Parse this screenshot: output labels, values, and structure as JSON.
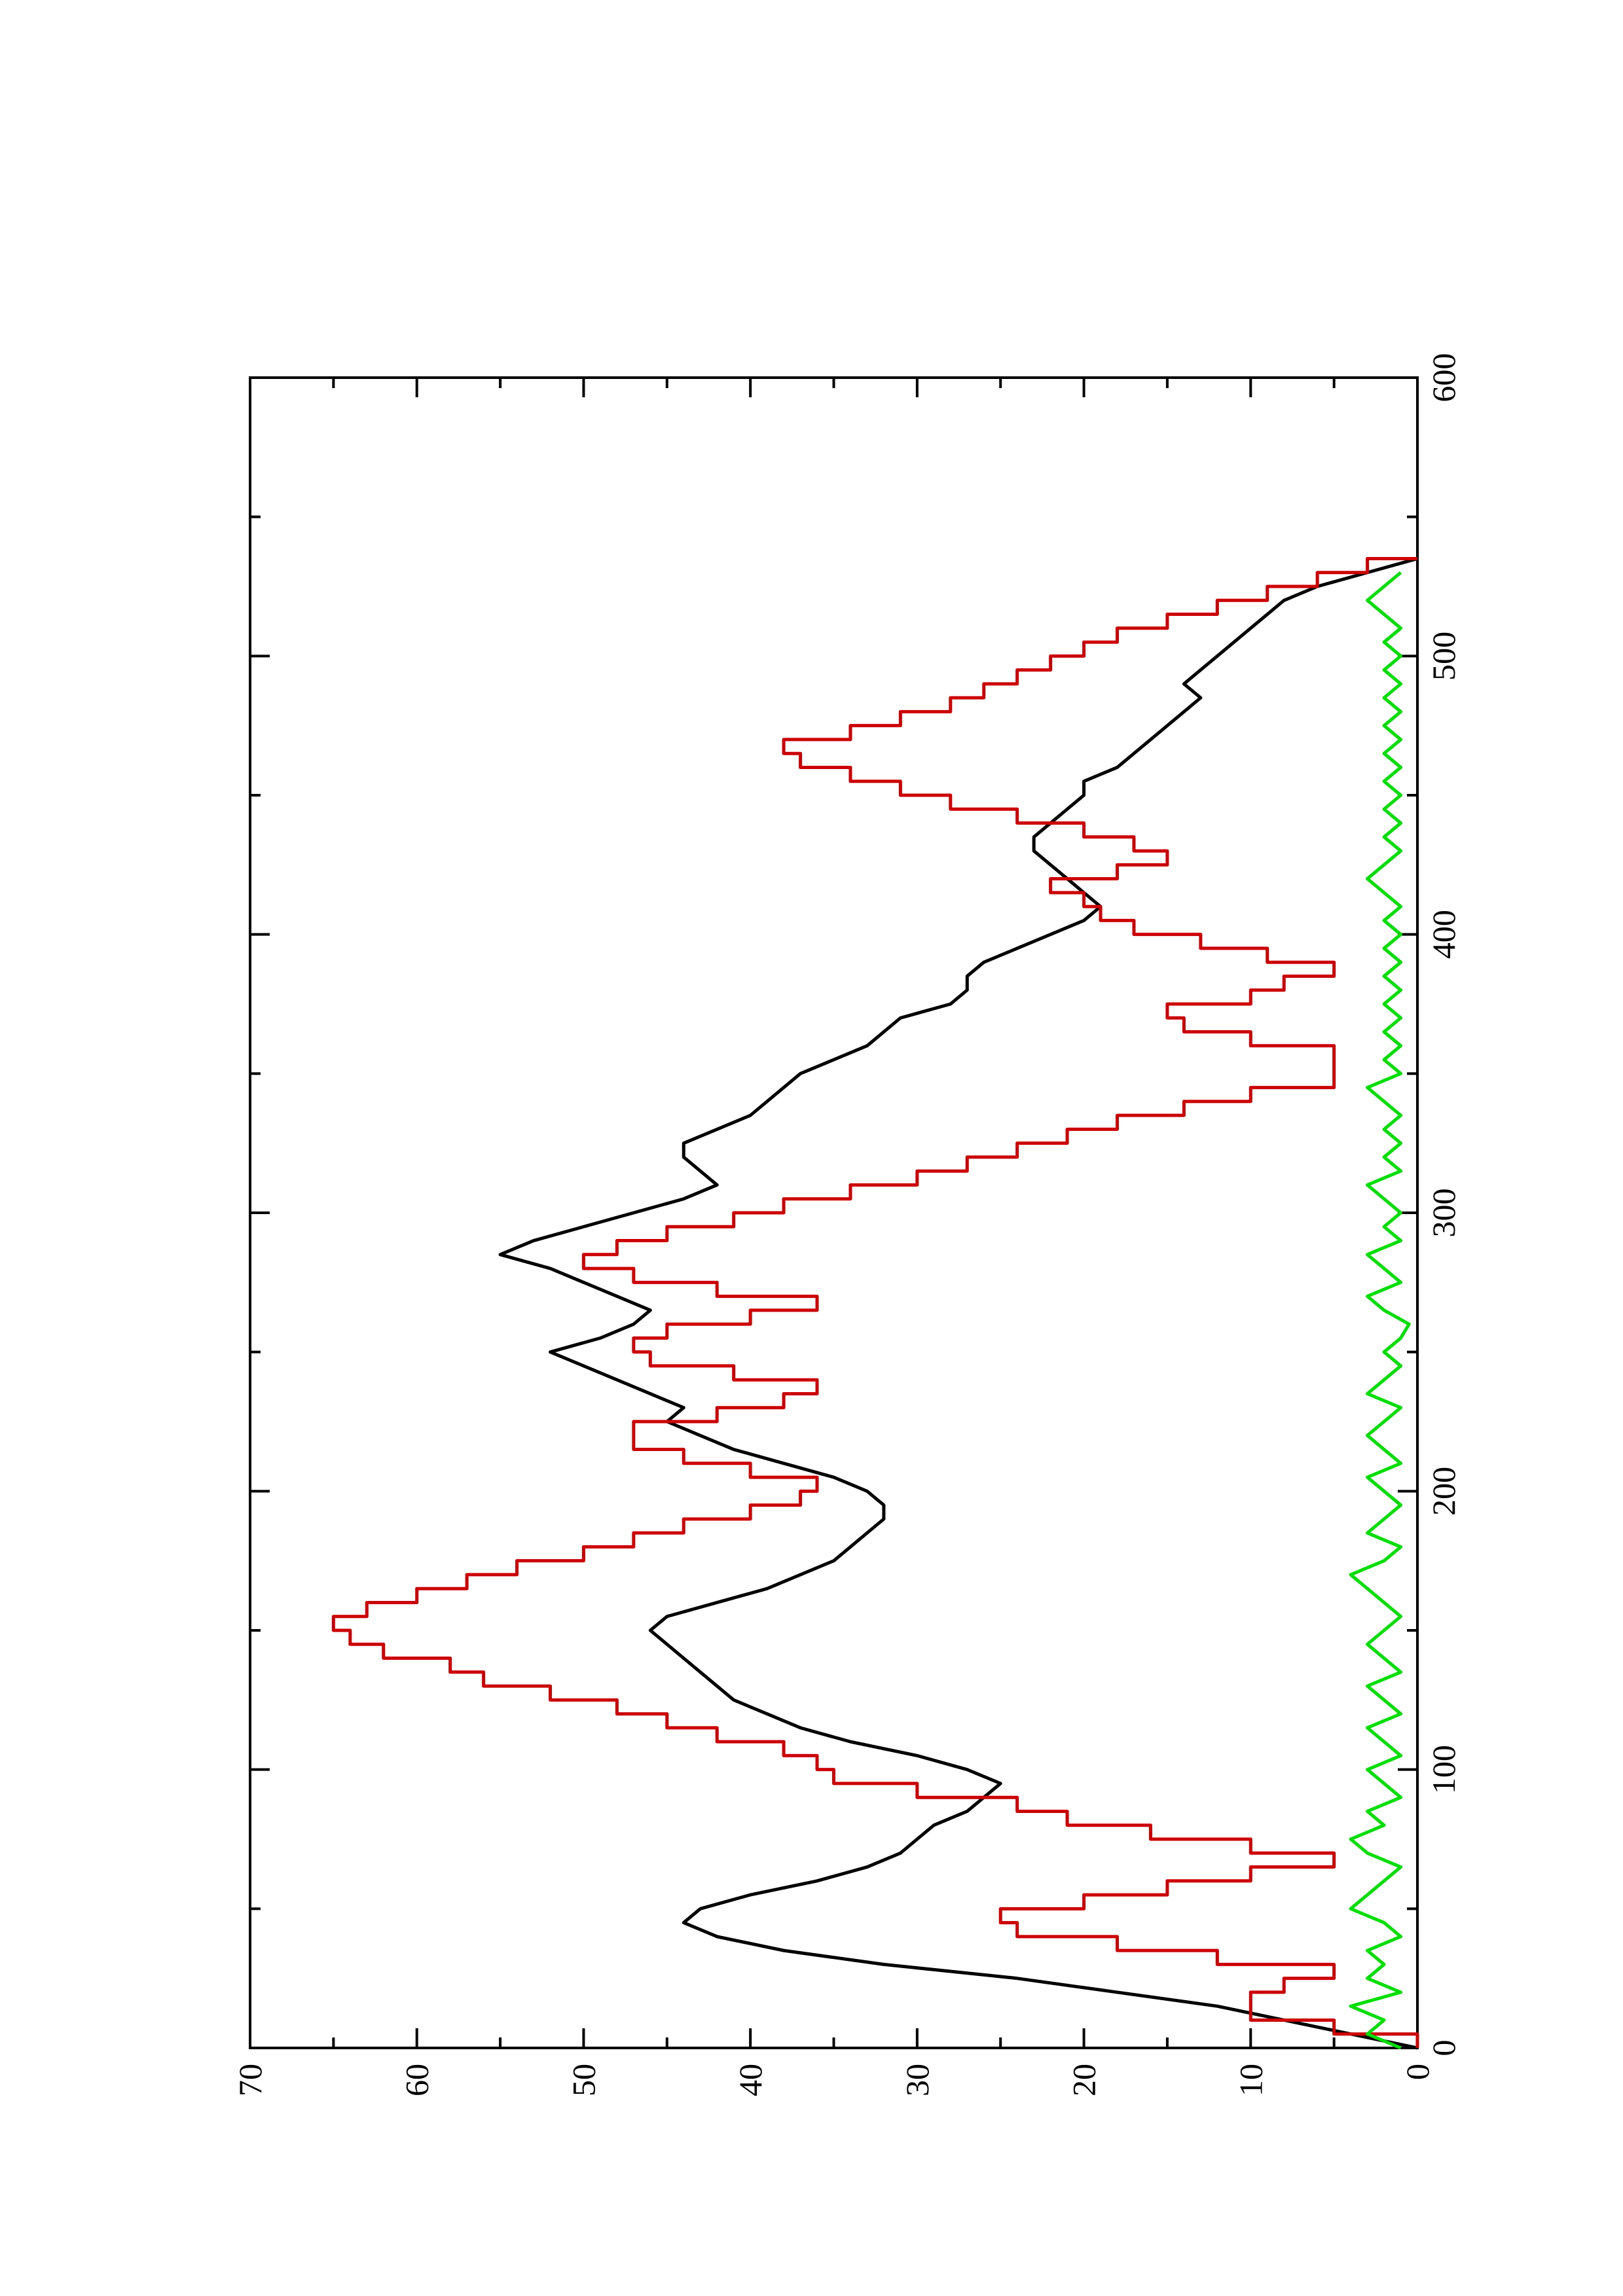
{
  "chart_data": {
    "type": "line",
    "orientation": "rotated-90-counterclockwise",
    "title": "",
    "xlabel": "",
    "ylabel": "",
    "xlim": [
      0,
      600
    ],
    "ylim": [
      0,
      70
    ],
    "x_ticks": [
      0,
      100,
      200,
      300,
      400,
      500,
      600
    ],
    "x_minor_ticks": [
      50,
      150,
      250,
      350,
      450,
      550
    ],
    "y_ticks": [
      0,
      10,
      20,
      30,
      40,
      50,
      60,
      70
    ],
    "y_minor_ticks": [
      5,
      15,
      25,
      35,
      45,
      55,
      65
    ],
    "x_tick_labels": [
      "0",
      "100",
      "200",
      "300",
      "400",
      "500",
      "600"
    ],
    "y_tick_labels": [
      "0",
      "10",
      "20",
      "30",
      "40",
      "50",
      "60",
      "70"
    ],
    "grid": false,
    "legend": "none",
    "series": [
      {
        "color": "#000000",
        "style": "line",
        "x": [
          0,
          5,
          10,
          15,
          20,
          25,
          30,
          35,
          40,
          45,
          50,
          55,
          60,
          65,
          70,
          75,
          80,
          85,
          90,
          95,
          100,
          105,
          110,
          115,
          120,
          125,
          130,
          135,
          140,
          145,
          150,
          155,
          160,
          165,
          170,
          175,
          180,
          185,
          190,
          195,
          200,
          205,
          210,
          215,
          220,
          225,
          230,
          235,
          240,
          245,
          250,
          255,
          260,
          265,
          270,
          275,
          280,
          285,
          290,
          295,
          300,
          305,
          310,
          315,
          320,
          325,
          330,
          335,
          340,
          345,
          350,
          355,
          360,
          365,
          370,
          375,
          380,
          385,
          390,
          395,
          400,
          405,
          410,
          415,
          420,
          425,
          430,
          435,
          440,
          445,
          450,
          455,
          460,
          465,
          470,
          475,
          480,
          485,
          490,
          495,
          500,
          505,
          510,
          515,
          520,
          525,
          530,
          535
        ],
        "y": [
          0,
          4,
          8,
          12,
          18,
          24,
          32,
          38,
          42,
          44,
          43,
          40,
          36,
          33,
          31,
          30,
          29,
          27,
          26,
          25,
          27,
          30,
          34,
          37,
          39,
          41,
          42,
          43,
          44,
          45,
          46,
          45,
          42,
          39,
          37,
          35,
          34,
          33,
          32,
          32,
          33,
          35,
          38,
          41,
          43,
          45,
          44,
          46,
          48,
          50,
          52,
          49,
          47,
          46,
          48,
          50,
          52,
          55,
          53,
          50,
          47,
          44,
          42,
          43,
          44,
          44,
          42,
          40,
          39,
          38,
          37,
          35,
          33,
          32,
          31,
          28,
          27,
          27,
          26,
          24,
          22,
          20,
          19,
          20,
          21,
          22,
          23,
          23,
          22,
          21,
          20,
          20,
          18,
          17,
          16,
          15,
          14,
          13,
          14,
          13,
          12,
          11,
          10,
          9,
          8,
          6,
          3,
          0
        ]
      },
      {
        "color": "#cc0000",
        "style": "step",
        "x": [
          0,
          5,
          10,
          15,
          20,
          25,
          30,
          35,
          40,
          45,
          50,
          55,
          60,
          65,
          70,
          75,
          80,
          85,
          90,
          95,
          100,
          105,
          110,
          115,
          120,
          125,
          130,
          135,
          140,
          145,
          150,
          155,
          160,
          165,
          170,
          175,
          180,
          185,
          190,
          195,
          200,
          205,
          210,
          215,
          220,
          225,
          230,
          235,
          240,
          245,
          250,
          255,
          260,
          265,
          270,
          275,
          280,
          285,
          290,
          295,
          300,
          305,
          310,
          315,
          320,
          325,
          330,
          335,
          340,
          345,
          350,
          355,
          360,
          365,
          370,
          375,
          380,
          385,
          390,
          395,
          400,
          405,
          410,
          415,
          420,
          425,
          430,
          435,
          440,
          445,
          450,
          455,
          460,
          465,
          470,
          475,
          480,
          485,
          490,
          495,
          500,
          505,
          510,
          515,
          520,
          525,
          530,
          535
        ],
        "y": [
          0,
          5,
          10,
          10,
          8,
          5,
          12,
          18,
          24,
          25,
          20,
          15,
          10,
          5,
          10,
          16,
          21,
          24,
          30,
          35,
          36,
          38,
          42,
          45,
          48,
          52,
          56,
          58,
          62,
          64,
          65,
          63,
          60,
          57,
          54,
          50,
          47,
          44,
          40,
          37,
          36,
          40,
          44,
          47,
          47,
          42,
          38,
          36,
          41,
          46,
          47,
          45,
          40,
          36,
          42,
          47,
          50,
          48,
          45,
          41,
          38,
          34,
          30,
          27,
          24,
          21,
          18,
          14,
          10,
          5,
          5,
          5,
          10,
          14,
          15,
          10,
          8,
          5,
          9,
          13,
          17,
          19,
          20,
          22,
          18,
          15,
          17,
          20,
          24,
          28,
          31,
          34,
          37,
          38,
          34,
          31,
          28,
          26,
          24,
          22,
          20,
          18,
          15,
          12,
          9,
          6,
          3,
          0
        ]
      },
      {
        "color": "#00dd00",
        "style": "line",
        "x": [
          0,
          5,
          10,
          15,
          20,
          25,
          30,
          35,
          40,
          45,
          50,
          55,
          60,
          65,
          70,
          75,
          80,
          85,
          90,
          95,
          100,
          105,
          110,
          115,
          120,
          125,
          130,
          135,
          140,
          145,
          150,
          155,
          160,
          165,
          170,
          175,
          180,
          185,
          190,
          195,
          200,
          205,
          210,
          215,
          220,
          225,
          230,
          235,
          240,
          245,
          250,
          255,
          260,
          265,
          270,
          275,
          280,
          285,
          290,
          295,
          300,
          305,
          310,
          315,
          320,
          325,
          330,
          335,
          340,
          345,
          350,
          355,
          360,
          365,
          370,
          375,
          380,
          385,
          390,
          395,
          400,
          405,
          410,
          415,
          420,
          425,
          430,
          435,
          440,
          445,
          450,
          455,
          460,
          465,
          470,
          475,
          480,
          485,
          490,
          495,
          500,
          505,
          510,
          515,
          520,
          525,
          530
        ],
        "y": [
          1,
          3,
          2,
          4,
          1,
          3,
          2,
          3,
          1,
          2,
          4,
          3,
          2,
          1,
          3,
          4,
          2,
          3,
          1,
          2,
          3,
          1,
          2,
          3,
          1,
          2,
          3,
          1,
          2,
          3,
          2,
          1,
          2,
          3,
          4,
          2,
          1,
          3,
          2,
          1,
          2,
          3,
          1,
          2,
          3,
          2,
          1,
          3,
          2,
          1,
          2,
          1,
          0.5,
          2,
          3,
          1,
          2,
          3,
          1,
          2,
          1,
          2,
          3,
          1,
          2,
          1,
          2,
          1,
          2,
          3,
          1,
          2,
          1,
          2,
          1,
          2,
          1,
          2,
          1,
          2,
          1,
          2,
          1,
          2,
          3,
          2,
          1,
          2,
          1,
          2,
          1,
          2,
          1,
          2,
          1,
          2,
          1,
          2,
          1,
          2,
          1,
          2,
          1,
          2,
          3,
          2,
          1
        ]
      }
    ]
  }
}
